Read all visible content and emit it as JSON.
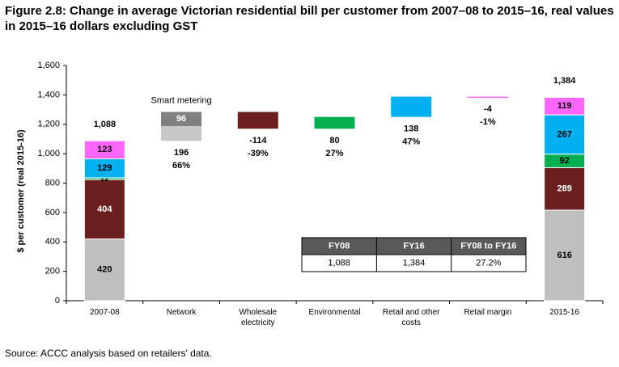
{
  "chart_data": {
    "type": "waterfall",
    "title": "Figure 2.8: Change in average Victorian residential bill per customer from 2007–08 to 2015–16, real values in 2015–16 dollars excluding GST",
    "y_label": "$ per customer (real 2015-16)",
    "categories": [
      "2007-08",
      "Network",
      "Wholesale electricity",
      "Environmental",
      "Retail and other costs",
      "Retail margin",
      "2015-16"
    ],
    "ylim": [
      0,
      1600
    ],
    "yticks": [
      0,
      200,
      400,
      600,
      800,
      {
        "value": 1000,
        "label": "1,000"
      },
      {
        "value": 1200,
        "label": "1,200"
      },
      {
        "value": 1400,
        "label": "1,400"
      },
      {
        "value": 1600,
        "label": "1,600"
      }
    ],
    "segment_colors": [
      "#bfbfbf",
      "#6b1f1f",
      "#00b050",
      "#00b0f0",
      "#ff66ff"
    ],
    "segment_label_colors": [
      "#000000",
      "#ffffff",
      "#000000",
      "#000000",
      "#000000"
    ],
    "start": {
      "values": [
        420,
        404,
        12,
        129,
        123
      ],
      "total": 1088,
      "total_label": "1,088"
    },
    "end": {
      "values": [
        616,
        289,
        92,
        267,
        119
      ],
      "total": 1384,
      "total_label": "1,384"
    },
    "steps": [
      {
        "value": 196,
        "change": 66,
        "change_label": "66%",
        "color": "#c8c8c8",
        "part": {
          "value": 96,
          "color": "#7f7f7f",
          "annotation": "Smart metering"
        }
      },
      {
        "value": -114,
        "change": -39,
        "change_label": "-39%",
        "color": "#6b1f1f"
      },
      {
        "value": 80,
        "change": 27,
        "change_label": "27%",
        "color": "#00b050"
      },
      {
        "value": 138,
        "change": 47,
        "change_label": "47%",
        "color": "#00b0f0"
      },
      {
        "value": -4,
        "change": -1,
        "change_label": "-1%",
        "color": "#ff66ff"
      }
    ],
    "table": {
      "headers": [
        "FY08",
        "FY16",
        "FY08 to FY16"
      ],
      "values": [
        1088,
        1384,
        27.2
      ],
      "value_labels": [
        "1,088",
        "1,384",
        "27.2%"
      ]
    },
    "source": "Source: ACCC analysis based on retailers' data."
  }
}
